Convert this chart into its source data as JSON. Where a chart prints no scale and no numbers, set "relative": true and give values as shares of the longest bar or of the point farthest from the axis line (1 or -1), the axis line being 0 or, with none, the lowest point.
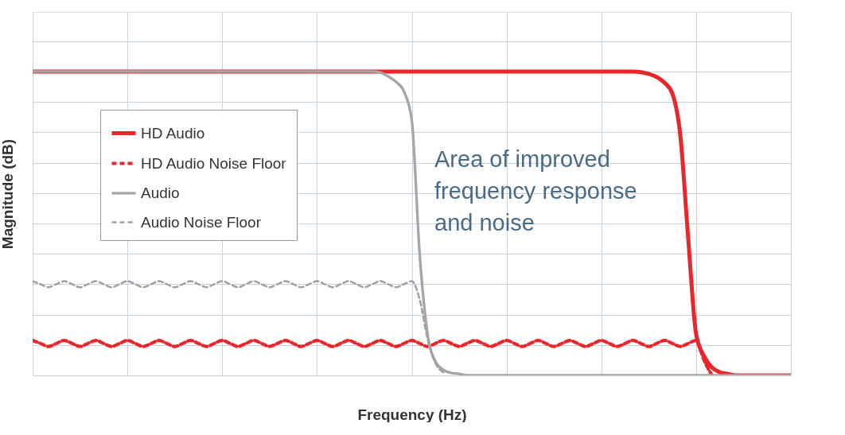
{
  "chart_data": {
    "type": "line",
    "relative": true,
    "xlabel": "Frequency (Hz)",
    "ylabel": "Magnitude (dB)",
    "grid": true,
    "legend": "top left",
    "tick_labels": false,
    "annotations": [
      "Area of improved frequency response and noise"
    ],
    "categories": [
      null,
      null,
      null,
      null,
      null,
      null,
      null,
      null,
      null,
      null,
      null,
      null,
      null,
      null,
      null,
      null,
      null,
      null,
      null,
      null,
      null,
      null,
      null,
      null,
      null,
      null,
      null,
      null,
      null,
      null,
      null,
      null,
      null,
      null,
      null,
      null,
      null,
      null,
      null,
      null,
      null,
      null,
      null,
      null,
      null,
      null,
      null,
      null,
      null,
      null,
      null,
      null,
      null,
      null,
      null,
      null,
      null,
      null,
      null,
      null,
      null,
      null,
      null,
      null,
      null,
      null,
      null,
      null,
      null,
      null,
      null,
      null,
      null,
      null,
      null,
      null,
      null,
      null,
      null,
      null,
      null,
      null,
      null,
      null,
      null,
      null,
      null,
      null,
      null,
      null,
      null,
      null,
      null,
      null,
      null,
      null,
      null
    ],
    "series": [
      {
        "name": "HD Audio",
        "color": "#e8262b",
        "line_style": "solid",
        "values": [
          1,
          1,
          1,
          1,
          1,
          1,
          1,
          1,
          1,
          1,
          1,
          1,
          1,
          1,
          1,
          1,
          1,
          1,
          1,
          1,
          1,
          1,
          1,
          1,
          1,
          1,
          1,
          1,
          1,
          1,
          1,
          1,
          1,
          1,
          1,
          1,
          1,
          1,
          1,
          1,
          1,
          1,
          1,
          1,
          1,
          1,
          1,
          1,
          1,
          1,
          1,
          1,
          1,
          1,
          1,
          1,
          1,
          1,
          1,
          1,
          1,
          1,
          1,
          1,
          1,
          1,
          1,
          1,
          1,
          1,
          1,
          1,
          1,
          1,
          1,
          1,
          1,
          0.998,
          0.992,
          0.982,
          0.963,
          0.927,
          0.79,
          0.45,
          0.136,
          0.063,
          0.026,
          0.01,
          0.005,
          0,
          0,
          0,
          0,
          0,
          0,
          0,
          0
        ]
      },
      {
        "name": "HD Audio Noise Floor",
        "color": "#e8262b",
        "line_style": "dashed",
        "values": [
          0.115,
          0.105,
          0.095,
          0.105,
          0.115,
          0.105,
          0.095,
          0.105,
          0.115,
          0.105,
          0.095,
          0.105,
          0.115,
          0.105,
          0.095,
          0.105,
          0.115,
          0.105,
          0.095,
          0.105,
          0.115,
          0.105,
          0.095,
          0.105,
          0.115,
          0.105,
          0.095,
          0.105,
          0.115,
          0.105,
          0.095,
          0.105,
          0.115,
          0.105,
          0.095,
          0.105,
          0.115,
          0.105,
          0.095,
          0.105,
          0.115,
          0.105,
          0.095,
          0.105,
          0.115,
          0.105,
          0.095,
          0.105,
          0.115,
          0.105,
          0.095,
          0.105,
          0.115,
          0.105,
          0.095,
          0.105,
          0.115,
          0.105,
          0.095,
          0.105,
          0.115,
          0.105,
          0.095,
          0.105,
          0.115,
          0.105,
          0.095,
          0.105,
          0.115,
          0.105,
          0.095,
          0.105,
          0.115,
          0.105,
          0.095,
          0.105,
          0.115,
          0.105,
          0.095,
          0.105,
          0.115,
          0.105,
          0.095,
          0.105,
          0.115,
          0.05,
          0,
          null,
          null,
          null,
          null,
          null,
          null,
          null,
          null,
          null,
          null
        ]
      },
      {
        "name": "Audio",
        "color": "#a6a6a8",
        "line_style": "solid",
        "values": [
          1,
          1,
          1,
          1,
          1,
          1,
          1,
          1,
          1,
          1,
          1,
          1,
          1,
          1,
          1,
          1,
          1,
          1,
          1,
          1,
          1,
          1,
          1,
          1,
          1,
          1,
          1,
          1,
          1,
          1,
          1,
          1,
          1,
          1,
          1,
          1,
          1,
          1,
          1,
          1,
          1,
          1,
          1,
          1,
          0.997,
          0.984,
          0.966,
          0.935,
          0.84,
          0.4,
          0.136,
          0.045,
          0.018,
          0.008,
          0.005,
          0,
          0,
          0,
          0,
          0,
          0,
          0,
          0,
          0,
          0,
          0,
          0,
          0,
          0,
          0,
          0,
          0,
          0,
          0,
          0,
          0,
          0,
          0,
          0,
          0,
          0,
          0,
          0,
          0,
          0,
          0,
          0,
          0,
          0,
          0,
          0,
          0,
          0,
          0,
          0,
          0,
          0
        ]
      },
      {
        "name": "Audio Noise Floor",
        "color": "#a0a0a2",
        "line_style": "dashed",
        "values": [
          0.31,
          0.3,
          0.29,
          0.3,
          0.31,
          0.3,
          0.29,
          0.3,
          0.31,
          0.3,
          0.29,
          0.3,
          0.31,
          0.3,
          0.29,
          0.3,
          0.31,
          0.3,
          0.29,
          0.3,
          0.31,
          0.3,
          0.29,
          0.3,
          0.31,
          0.3,
          0.29,
          0.3,
          0.31,
          0.3,
          0.29,
          0.3,
          0.31,
          0.3,
          0.29,
          0.3,
          0.31,
          0.3,
          0.29,
          0.3,
          0.31,
          0.3,
          0.29,
          0.3,
          0.31,
          0.3,
          0.29,
          0.3,
          0.31,
          0.25,
          0.12,
          0.04,
          0.01,
          null,
          null,
          null,
          null,
          null,
          null,
          null,
          null,
          null,
          null,
          null,
          null,
          null,
          null,
          null,
          null,
          null,
          null,
          null,
          null,
          null,
          null,
          null,
          null,
          null,
          null,
          null,
          null,
          null,
          null,
          null,
          null,
          null,
          null,
          null,
          null,
          null,
          null,
          null,
          null,
          null,
          null,
          null,
          null
        ]
      }
    ]
  }
}
